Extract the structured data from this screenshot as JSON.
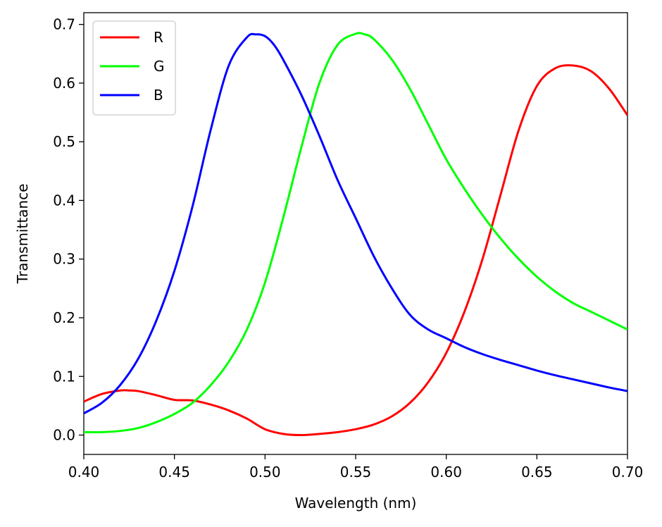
{
  "chart_data": {
    "type": "line",
    "title": "",
    "xlabel": "Wavelength (nm)",
    "ylabel": "Transmittance",
    "xlim": [
      0.4,
      0.7
    ],
    "ylim": [
      -0.033,
      0.72
    ],
    "x_ticks": [
      0.4,
      0.45,
      0.5,
      0.55,
      0.6,
      0.65,
      0.7
    ],
    "x_tick_labels": [
      "0.40",
      "0.45",
      "0.50",
      "0.55",
      "0.60",
      "0.65",
      "0.70"
    ],
    "y_ticks": [
      0.0,
      0.1,
      0.2,
      0.3,
      0.4,
      0.5,
      0.6,
      0.7
    ],
    "y_tick_labels": [
      "0.0",
      "0.1",
      "0.2",
      "0.3",
      "0.4",
      "0.5",
      "0.6",
      "0.7"
    ],
    "grid": false,
    "legend_position": "top-left",
    "series": [
      {
        "name": "R",
        "color": "#ff0000",
        "x": [
          0.4,
          0.41,
          0.42,
          0.425,
          0.43,
          0.44,
          0.45,
          0.46,
          0.47,
          0.48,
          0.49,
          0.5,
          0.51,
          0.52,
          0.53,
          0.54,
          0.55,
          0.56,
          0.57,
          0.58,
          0.59,
          0.6,
          0.61,
          0.62,
          0.63,
          0.64,
          0.65,
          0.66,
          0.67,
          0.68,
          0.69,
          0.7
        ],
        "values": [
          0.057,
          0.07,
          0.076,
          0.076,
          0.075,
          0.068,
          0.06,
          0.059,
          0.052,
          0.042,
          0.028,
          0.01,
          0.002,
          0.0,
          0.002,
          0.005,
          0.01,
          0.018,
          0.032,
          0.055,
          0.09,
          0.14,
          0.21,
          0.3,
          0.41,
          0.52,
          0.595,
          0.625,
          0.63,
          0.62,
          0.59,
          0.545
        ]
      },
      {
        "name": "G",
        "color": "#00ff00",
        "x": [
          0.4,
          0.41,
          0.42,
          0.43,
          0.44,
          0.45,
          0.46,
          0.47,
          0.48,
          0.49,
          0.5,
          0.51,
          0.52,
          0.53,
          0.54,
          0.55,
          0.555,
          0.56,
          0.57,
          0.58,
          0.59,
          0.6,
          0.61,
          0.62,
          0.63,
          0.64,
          0.65,
          0.66,
          0.67,
          0.68,
          0.69,
          0.7
        ],
        "values": [
          0.005,
          0.005,
          0.007,
          0.012,
          0.022,
          0.036,
          0.055,
          0.085,
          0.125,
          0.18,
          0.26,
          0.37,
          0.49,
          0.6,
          0.665,
          0.684,
          0.683,
          0.675,
          0.64,
          0.59,
          0.53,
          0.47,
          0.42,
          0.375,
          0.335,
          0.3,
          0.27,
          0.245,
          0.225,
          0.21,
          0.195,
          0.18
        ]
      },
      {
        "name": "B",
        "color": "#0000ff",
        "x": [
          0.4,
          0.41,
          0.42,
          0.43,
          0.44,
          0.45,
          0.46,
          0.47,
          0.48,
          0.49,
          0.495,
          0.5,
          0.505,
          0.51,
          0.52,
          0.53,
          0.54,
          0.55,
          0.56,
          0.57,
          0.58,
          0.59,
          0.6,
          0.61,
          0.62,
          0.63,
          0.64,
          0.65,
          0.66,
          0.67,
          0.68,
          0.69,
          0.7
        ],
        "values": [
          0.037,
          0.055,
          0.085,
          0.13,
          0.195,
          0.28,
          0.39,
          0.52,
          0.63,
          0.678,
          0.683,
          0.68,
          0.665,
          0.64,
          0.58,
          0.51,
          0.435,
          0.37,
          0.305,
          0.25,
          0.205,
          0.18,
          0.165,
          0.15,
          0.138,
          0.128,
          0.119,
          0.11,
          0.102,
          0.095,
          0.088,
          0.081,
          0.075
        ]
      }
    ]
  }
}
